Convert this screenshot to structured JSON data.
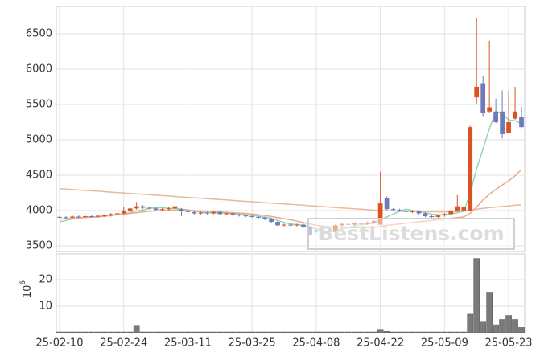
{
  "chart_data": {
    "type": "candlestick",
    "categories": [
      "25-02-10",
      null,
      null,
      null,
      null,
      null,
      null,
      null,
      null,
      null,
      "25-02-24",
      null,
      null,
      null,
      null,
      null,
      null,
      null,
      null,
      null,
      "25-03-11",
      null,
      null,
      null,
      null,
      null,
      null,
      null,
      null,
      null,
      "25-03-25",
      null,
      null,
      null,
      null,
      null,
      null,
      null,
      null,
      null,
      "25-04-08",
      null,
      null,
      null,
      null,
      null,
      null,
      null,
      null,
      null,
      "25-04-22",
      null,
      null,
      null,
      null,
      null,
      null,
      null,
      null,
      null,
      "25-05-09",
      null,
      null,
      null,
      null,
      null,
      null,
      null,
      null,
      null,
      "25-05-23",
      null,
      null
    ],
    "open": [
      3910,
      3905,
      3900,
      3915,
      3910,
      3920,
      3915,
      3925,
      3930,
      3950,
      3960,
      4000,
      4030,
      4060,
      4040,
      4030,
      4010,
      4020,
      4030,
      4020,
      3990,
      3980,
      3960,
      3970,
      3960,
      3980,
      3950,
      3960,
      3940,
      3930,
      3920,
      3910,
      3900,
      3880,
      3840,
      3790,
      3800,
      3790,
      3800,
      3770,
      3720,
      3700,
      3710,
      3700,
      3790,
      3810,
      3800,
      3820,
      3810,
      3830,
      3800,
      4180,
      4020,
      4010,
      4000,
      3980,
      3990,
      3960,
      3920,
      3910,
      3930,
      3950,
      4000,
      4000,
      3990,
      5600,
      5800,
      5400,
      5400,
      5400,
      5100,
      5300,
      5320
    ],
    "high": [
      3925,
      3920,
      3930,
      3930,
      3935,
      3935,
      3940,
      3945,
      3965,
      3975,
      4050,
      4045,
      4120,
      4075,
      4055,
      4045,
      4035,
      4045,
      4080,
      4035,
      4005,
      3995,
      3985,
      3985,
      3995,
      3995,
      3975,
      3975,
      3955,
      3945,
      3935,
      3925,
      3915,
      3895,
      3855,
      3815,
      3815,
      3815,
      3815,
      3785,
      3735,
      3725,
      3725,
      3805,
      3825,
      3825,
      3835,
      3835,
      3845,
      3865,
      4550,
      4200,
      4035,
      4025,
      4015,
      4005,
      4005,
      3975,
      3935,
      3945,
      3965,
      4015,
      4220,
      4065,
      5200,
      6720,
      5900,
      6400,
      5580,
      5700,
      5700,
      5750,
      5470
    ],
    "low": [
      3890,
      3885,
      3885,
      3895,
      3895,
      3900,
      3900,
      3910,
      3915,
      3935,
      3945,
      3985,
      4015,
      4025,
      4015,
      3995,
      3995,
      4005,
      4015,
      3920,
      3965,
      3945,
      3945,
      3945,
      3945,
      3935,
      3935,
      3925,
      3915,
      3905,
      3895,
      3885,
      3865,
      3825,
      3775,
      3775,
      3775,
      3775,
      3755,
      3650,
      3685,
      3685,
      3685,
      3685,
      3775,
      3785,
      3785,
      3795,
      3795,
      3815,
      3800,
      4005,
      3995,
      3985,
      3965,
      3965,
      3945,
      3905,
      3895,
      3895,
      3915,
      3935,
      3985,
      3985,
      3990,
      5500,
      5335,
      5385,
      5235,
      5020,
      5085,
      5285,
      5165
    ],
    "close": [
      3905,
      3900,
      3915,
      3910,
      3920,
      3915,
      3925,
      3930,
      3950,
      3960,
      4000,
      4030,
      4060,
      4040,
      4030,
      4010,
      4020,
      4030,
      4060,
      3990,
      3980,
      3960,
      3970,
      3960,
      3980,
      3950,
      3960,
      3940,
      3930,
      3920,
      3910,
      3900,
      3880,
      3840,
      3790,
      3800,
      3790,
      3800,
      3770,
      3660,
      3700,
      3710,
      3700,
      3790,
      3810,
      3800,
      3820,
      3810,
      3830,
      3850,
      4100,
      4020,
      4010,
      4000,
      3980,
      3990,
      3960,
      3920,
      3910,
      3930,
      3950,
      4000,
      4060,
      4050,
      5180,
      5750,
      5380,
      5460,
      5250,
      5080,
      5250,
      5400,
      5180
    ],
    "up_color": "#d9541e",
    "down_color": "#6f7bb7",
    "ma": [
      {
        "color": "#8fd6c0",
        "values": [
          3840,
          3860,
          3880,
          3895,
          3905,
          3910,
          3915,
          3920,
          3930,
          3940,
          3955,
          3975,
          3995,
          4010,
          4030,
          4040,
          4040,
          4030,
          4030,
          4020,
          4010,
          3995,
          3980,
          3970,
          3970,
          3965,
          3965,
          3960,
          3950,
          3940,
          3930,
          3920,
          3905,
          3890,
          3860,
          3830,
          3810,
          3800,
          3790,
          3760,
          3740,
          3720,
          3700,
          3700,
          3740,
          3760,
          3780,
          3800,
          3810,
          3820,
          3870,
          3910,
          3950,
          3990,
          4020,
          4000,
          3990,
          3970,
          3950,
          3940,
          3940,
          3950,
          3970,
          3990,
          4240,
          4590,
          4870,
          5160,
          5400,
          5380,
          5280,
          5270,
          5230
        ]
      },
      {
        "color": "#f0a882",
        "values": [
          3880,
          3885,
          3890,
          3895,
          3900,
          3905,
          3910,
          3920,
          3930,
          3940,
          3950,
          3960,
          3970,
          3980,
          3990,
          3995,
          4000,
          4005,
          4010,
          4010,
          4005,
          4000,
          3995,
          3990,
          3985,
          3980,
          3975,
          3970,
          3965,
          3960,
          3950,
          3940,
          3930,
          3915,
          3900,
          3885,
          3870,
          3850,
          3830,
          3810,
          3790,
          3780,
          3770,
          3765,
          3760,
          3758,
          3757,
          3757,
          3758,
          3760,
          3775,
          3790,
          3800,
          3810,
          3820,
          3830,
          3840,
          3850,
          3860,
          3870,
          3880,
          3890,
          3900,
          3910,
          3960,
          4050,
          4150,
          4230,
          4300,
          4360,
          4420,
          4490,
          4580
        ]
      },
      {
        "color": "#e8b99a",
        "values": [
          4310,
          4304,
          4298,
          4291,
          4285,
          4279,
          4273,
          4267,
          4260,
          4254,
          4248,
          4242,
          4236,
          4229,
          4223,
          4217,
          4211,
          4205,
          4198,
          4192,
          4186,
          4180,
          4174,
          4167,
          4161,
          4155,
          4149,
          4143,
          4136,
          4130,
          4124,
          4118,
          4112,
          4105,
          4099,
          4093,
          4087,
          4081,
          4074,
          4068,
          4062,
          4056,
          4050,
          4043,
          4037,
          4031,
          4025,
          4019,
          4012,
          4006,
          4000,
          3998,
          3996,
          3994,
          3992,
          3990,
          3988,
          3986,
          3984,
          3982,
          3980,
          3982,
          3985,
          3990,
          4005,
          4020,
          4030,
          4040,
          4050,
          4058,
          4066,
          4074,
          4082
        ]
      }
    ],
    "volume": [
      0.3,
      0.3,
      0.3,
      0.3,
      0.3,
      0.3,
      0.3,
      0.3,
      0.3,
      0.3,
      0.3,
      0.3,
      2.5,
      0.3,
      0.3,
      0.3,
      0.3,
      0.3,
      0.3,
      0.3,
      0.3,
      0.3,
      0.3,
      0.3,
      0.3,
      0.3,
      0.3,
      0.3,
      0.3,
      0.3,
      0.3,
      0.3,
      0.3,
      0.3,
      0.3,
      0.3,
      0.3,
      0.3,
      0.3,
      0.3,
      0.3,
      0.3,
      0.3,
      0.3,
      0.3,
      0.3,
      0.3,
      0.3,
      0.3,
      0.3,
      1,
      0.5,
      0.3,
      0.3,
      0.3,
      0.3,
      0.3,
      0.3,
      0.3,
      0.3,
      0.3,
      0.3,
      0.3,
      0.3,
      7,
      28,
      4,
      15,
      3,
      5,
      6.5,
      5,
      2
    ],
    "volume_color": "#7a7a7a",
    "ylim": [
      3420,
      6886
    ],
    "yticks": [
      3500,
      4000,
      4500,
      5000,
      5500,
      6000,
      6500
    ],
    "y2lim": [
      0,
      29.7
    ],
    "y2ticks": [
      10,
      20
    ],
    "y2_label_base": "10",
    "y2_label_exponent": "6",
    "grid": true,
    "watermark": "BestListens.com"
  }
}
